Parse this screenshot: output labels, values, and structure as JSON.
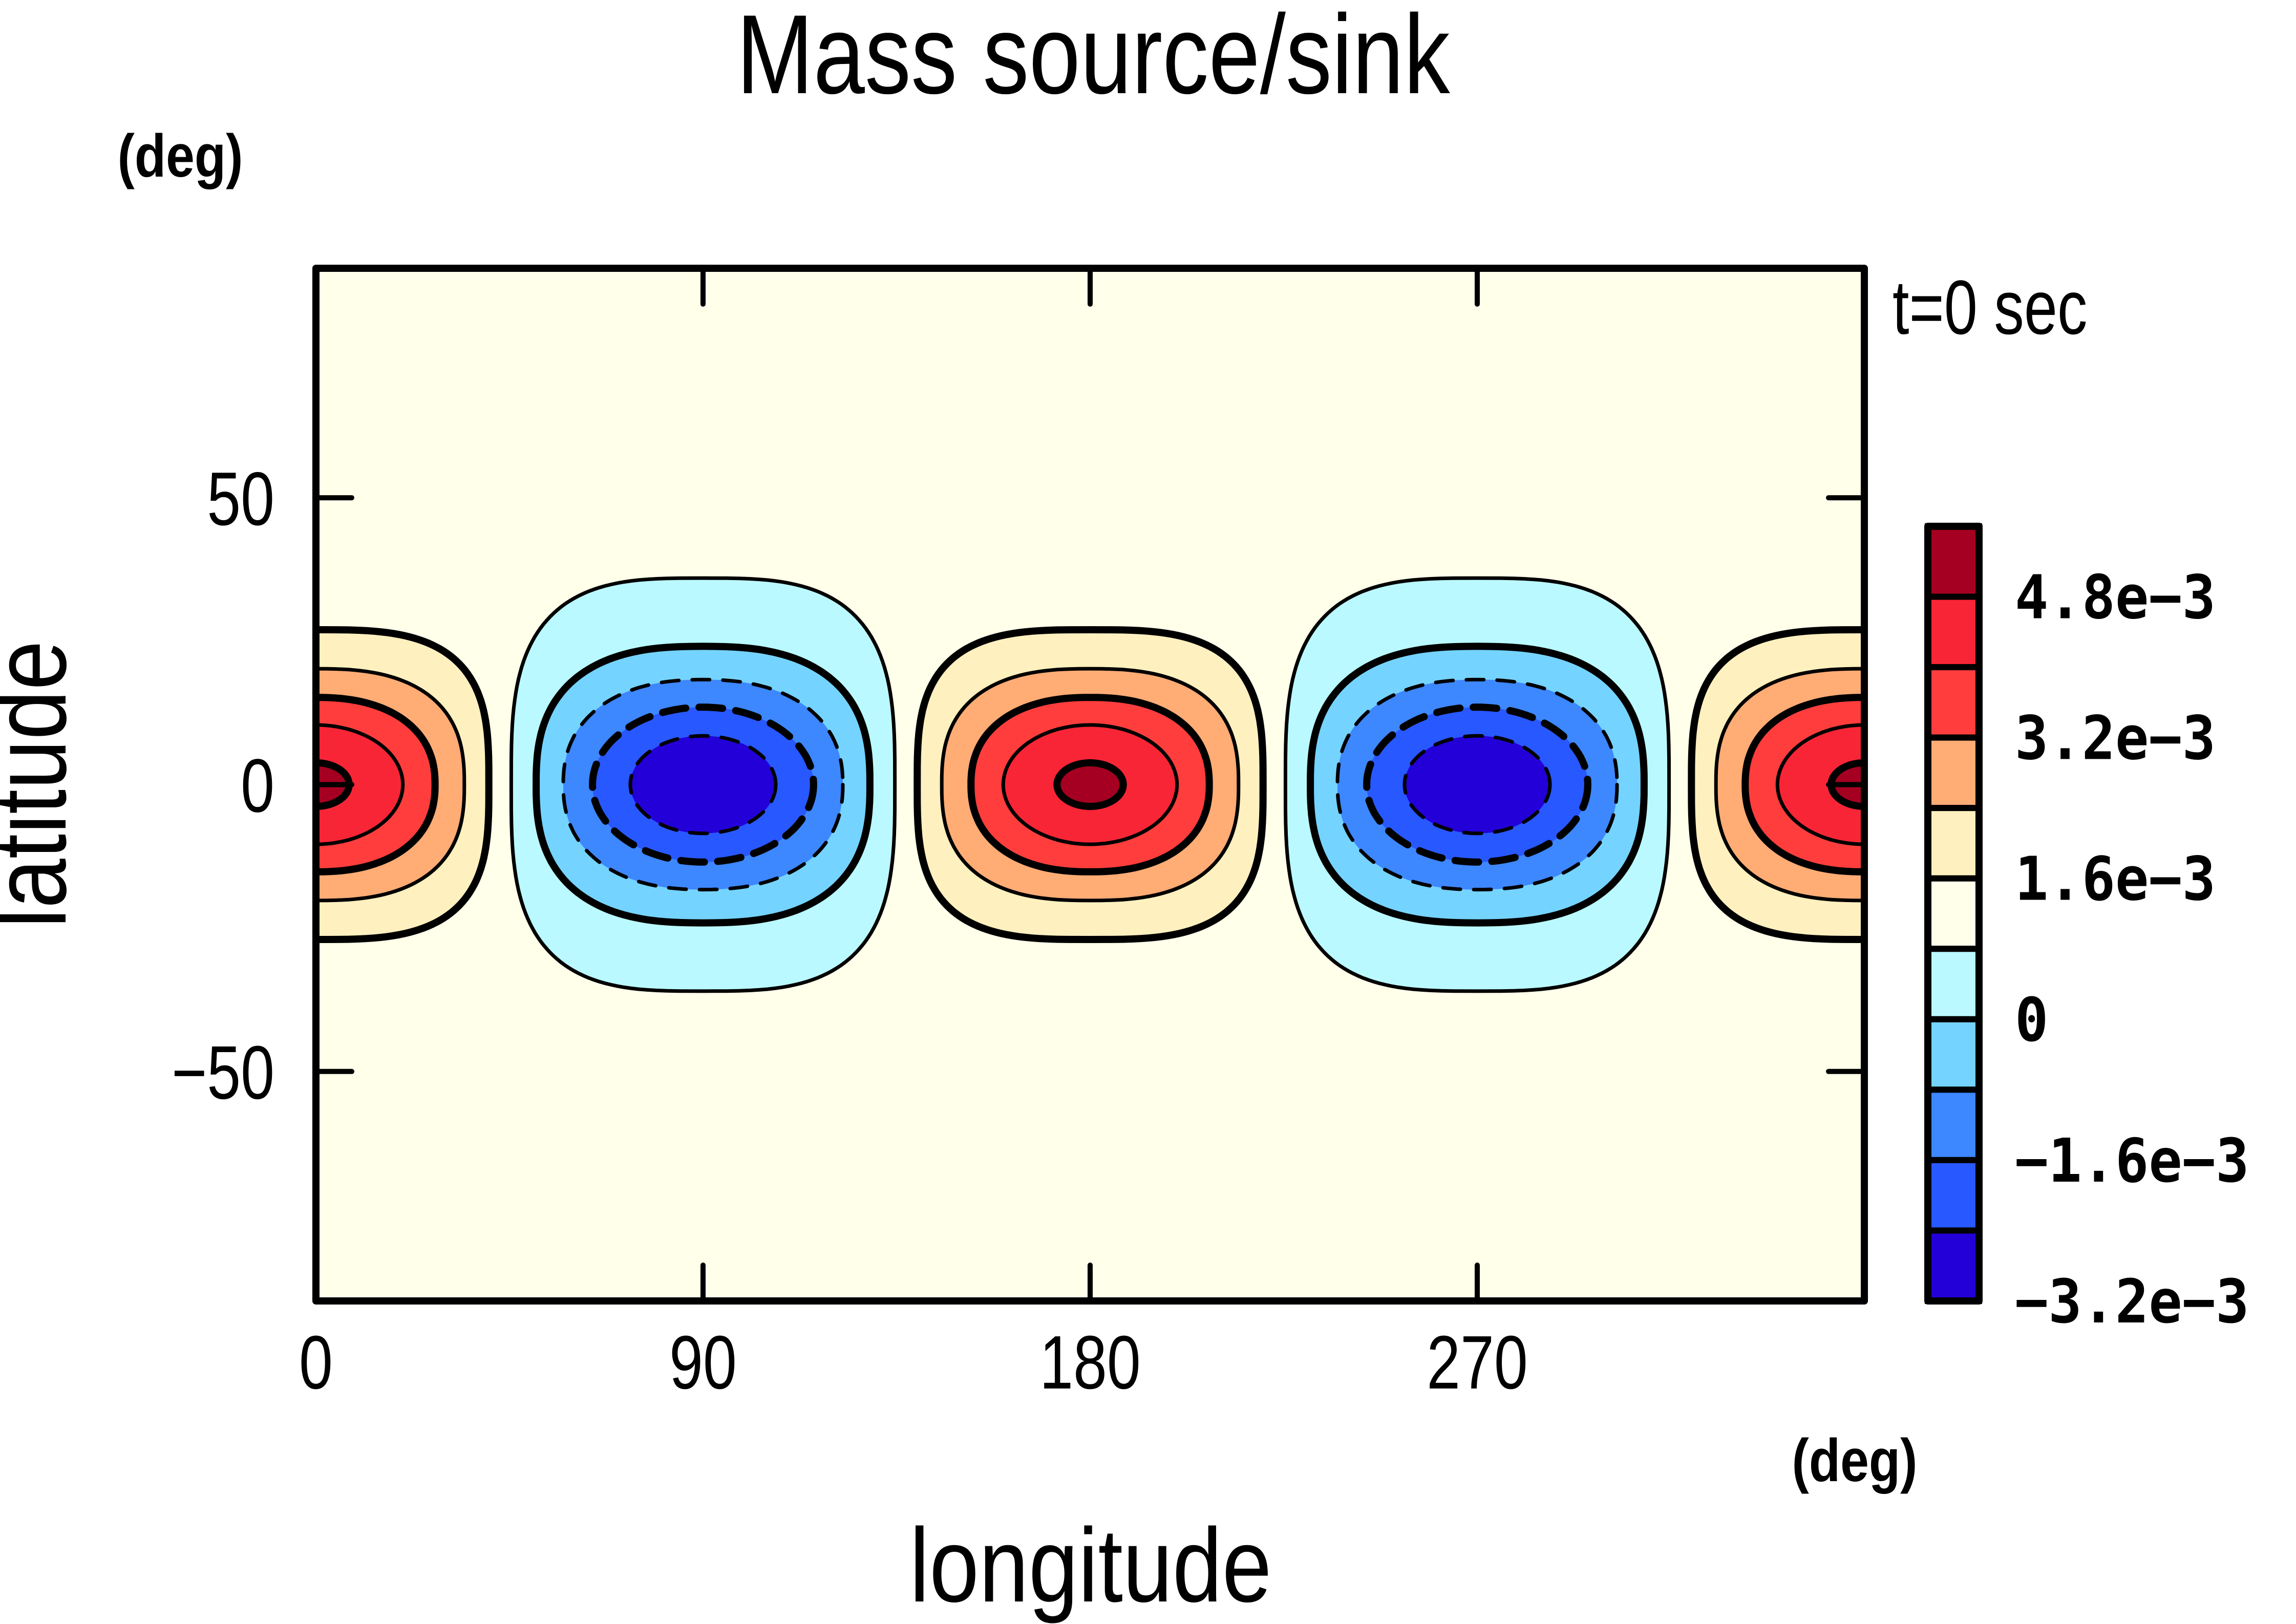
{
  "chart_data": {
    "type": "heatmap",
    "subtype": "filled-contour",
    "title": "Mass source/sink",
    "annotation": "t=0 sec",
    "xlabel": "longitude",
    "ylabel": "latitude",
    "xunits": "(deg)",
    "yunits": "(deg)",
    "xlim": [
      0,
      360
    ],
    "ylim": [
      -90,
      90
    ],
    "xticks": [
      0,
      90,
      180,
      270
    ],
    "xtick_labels": [
      "0",
      "90",
      "180",
      "270"
    ],
    "yticks": [
      50,
      0,
      -50
    ],
    "ytick_labels": [
      "50",
      "0",
      "−50"
    ],
    "grid": false,
    "field": {
      "pattern": "zonal wavenumber-2 equatorial dipole: maxima at lon 0/180/360, minima at lon 90/270, centered on the equator",
      "maxima": [
        {
          "lon": 0,
          "lat": 0,
          "value_band": ">4.8e-3"
        },
        {
          "lon": 180,
          "lat": 0,
          "value_band": ">4.8e-3"
        },
        {
          "lon": 360,
          "lat": 0,
          "value_band": ">4.8e-3"
        }
      ],
      "minima": [
        {
          "lon": 90,
          "lat": 0,
          "value_band": "<-2.4e-3"
        },
        {
          "lon": 270,
          "lat": 0,
          "value_band": "<-2.4e-3"
        }
      ],
      "high_contours": [
        {
          "level": 0.0024,
          "half_width_deg": 40.2,
          "half_lat_deg": 27.0,
          "fill_inside": "#FFF0BF",
          "weight": "thick",
          "dashed": false
        },
        {
          "level": 0.0032,
          "half_width_deg": 34.5,
          "half_lat_deg": 20.2,
          "fill_inside": "#FFAC75",
          "weight": "thin",
          "dashed": false
        },
        {
          "level": 0.004,
          "half_width_deg": 27.7,
          "half_lat_deg": 15.2,
          "fill_inside": "#FF3D3D",
          "weight": "thick",
          "dashed": false
        },
        {
          "level": 0.0048,
          "half_width_deg": 20.2,
          "half_lat_deg": 10.4,
          "fill_inside": "#F82536",
          "weight": "thin",
          "dashed": false
        },
        {
          "level": 0.0056,
          "half_width_deg": 7.7,
          "half_lat_deg": 3.8,
          "fill_inside": "#A50021",
          "weight": "thick",
          "dashed": false
        }
      ],
      "low_contours": [
        {
          "level": 0.0008,
          "half_width_deg": 44.6,
          "half_lat_deg": 36.0,
          "fill_inside": "#BAF9FF",
          "weight": "thin",
          "dashed": false
        },
        {
          "level": 0,
          "half_width_deg": 38.8,
          "half_lat_deg": 24.1,
          "fill_inside": "#75D3FF",
          "weight": "thick",
          "dashed": false
        },
        {
          "level": -0.0008,
          "half_width_deg": 32.5,
          "half_lat_deg": 18.3,
          "fill_inside": "#3D87FF",
          "weight": "thin",
          "dashed": true
        },
        {
          "level": -0.0016,
          "half_width_deg": 25.7,
          "half_lat_deg": 13.5,
          "fill_inside": "#2858FF",
          "weight": "thick",
          "dashed": true
        },
        {
          "level": -0.0024,
          "half_width_deg": 16.9,
          "half_lat_deg": 8.5,
          "fill_inside": "#2300D8",
          "weight": "thin",
          "dashed": true
        }
      ],
      "background_fill": "#FFFFEA"
    },
    "colorbar": {
      "boundaries": [
        0.0056,
        0.0048,
        0.004,
        0.0032,
        0.0024,
        0.0016,
        0.0008,
        0,
        -0.0008,
        -0.0016,
        -0.0024,
        -0.0032
      ],
      "colors": [
        "#A50021",
        "#F82536",
        "#FF3D3D",
        "#FFAC75",
        "#FFF0BF",
        "#FFFFEA",
        "#BAF9FF",
        "#75D3FF",
        "#3D87FF",
        "#2858FF",
        "#2300D8"
      ],
      "labels": [
        {
          "value": 0.0048,
          "text": "4.8e−3"
        },
        {
          "value": 0.0032,
          "text": "3.2e−3"
        },
        {
          "value": 0.0016,
          "text": "1.6e−3"
        },
        {
          "value": 0,
          "text": "0"
        },
        {
          "value": -0.0016,
          "text": "−1.6e−3"
        },
        {
          "value": -0.0032,
          "text": "−3.2e−3"
        }
      ],
      "placement": "right"
    }
  }
}
